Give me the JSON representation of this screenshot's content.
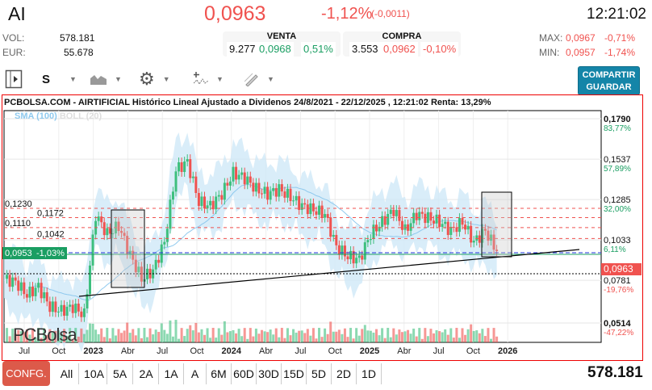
{
  "header": {
    "ticker": "AI",
    "price": "0,0963",
    "change_pct": "-1,12%",
    "change_abs": "(-0,0011)",
    "time": "12:21:02",
    "vol_label": "VOL:",
    "vol": "578.181",
    "eur_label": "EUR:",
    "eur": "55.678",
    "venta": {
      "label": "VENTA",
      "qty": "9.277",
      "price": "0,0968",
      "pct": "0,51%"
    },
    "compra": {
      "label": "COMPRA",
      "qty": "3.553",
      "price": "0,0962",
      "pct": "-0,10%"
    },
    "max_label": "MAX:",
    "max": "0,0967",
    "max_pct": "-0,71%",
    "min_label": "MIN:",
    "min": "0,0957",
    "min_pct": "-1,74%"
  },
  "toolbar": {
    "chart_style": "S",
    "share_line1": "COMPARTIR",
    "share_line2": "GUARDAR",
    "icons": [
      "panel-toggle-icon",
      "area-chart-icon",
      "gear-icon",
      "indicators-icon",
      "pencil-draw-icon"
    ]
  },
  "chart": {
    "title": "PCBOLSA.COM - AIRTIFICIAL Histórico Lineal Ajustado a Dividenos 24/8/2021 - 22/12/2025 , 12:21:02 Renta: 13,29%",
    "legend_sma": "SMA (100)",
    "legend_boll": "BOLL (20)",
    "logo_text": "PCBolsa",
    "colors": {
      "up": "#3dbf7d",
      "down": "#f0524f",
      "band": "#cfe8f8",
      "sma": "#8fc9ee"
    }
  },
  "chart_data": {
    "type": "candlestick",
    "x": [
      "2022-05",
      "2022-06",
      "2022-07",
      "2022-08",
      "2022-09",
      "2022-10",
      "2022-11",
      "2022-12",
      "2023-01",
      "2023-02",
      "2023-03",
      "2023-04",
      "2023-05",
      "2023-06",
      "2023-07",
      "2023-08",
      "2023-09",
      "2023-10",
      "2023-11",
      "2023-12",
      "2024-01",
      "2024-02",
      "2024-03",
      "2024-04",
      "2024-05",
      "2024-06",
      "2024-07",
      "2024-08",
      "2024-09",
      "2024-10",
      "2024-11",
      "2024-12",
      "2025-01",
      "2025-02",
      "2025-03",
      "2025-04",
      "2025-05",
      "2025-06",
      "2025-07",
      "2025-08",
      "2025-09",
      "2025-10",
      "2025-11",
      "2025-12"
    ],
    "close": [
      0.079,
      0.077,
      0.069,
      0.074,
      0.0615,
      0.059,
      0.0615,
      0.0565,
      0.119,
      0.107,
      0.112,
      0.094,
      0.079,
      0.084,
      0.102,
      0.147,
      0.152,
      0.127,
      0.1245,
      0.132,
      0.145,
      0.142,
      0.135,
      0.132,
      0.135,
      0.13,
      0.1245,
      0.122,
      0.1195,
      0.099,
      0.093,
      0.091,
      0.107,
      0.1145,
      0.122,
      0.109,
      0.1195,
      0.117,
      0.1145,
      0.109,
      0.1145,
      0.102,
      0.109,
      0.0963
    ],
    "x_ticks": [
      "Jul",
      "Oct",
      "2023",
      "Abr",
      "Jul",
      "Oct",
      "2024",
      "Abr",
      "Jul",
      "Oct",
      "2025",
      "Abr",
      "Jul",
      "Oct",
      "2026"
    ],
    "y_ticks": [
      {
        "v": "0,1790",
        "p": "83,77%"
      },
      {
        "v": "0,1537",
        "p": "57,89%"
      },
      {
        "v": "0,1285",
        "p": "32,00%"
      },
      {
        "v": "0,1033",
        "p": "6,11%"
      },
      {
        "v": "0,0781",
        "p": "-19,76%"
      },
      {
        "v": "0,0514",
        "p": "-47,22%"
      }
    ],
    "ylim": [
      0.0514,
      0.179
    ],
    "last_price_label": "0,0963",
    "levels": [
      {
        "label": "0,1230",
        "v": 0.123
      },
      {
        "label": "0,1172",
        "v": 0.1172
      },
      {
        "label": "0,1110",
        "v": 0.111
      },
      {
        "label": "0,1042",
        "v": 0.1042
      }
    ],
    "marker": {
      "label": "0,0953",
      "pct": "-1,03%",
      "v": 0.0953
    }
  },
  "footer": {
    "config": "CONFG.",
    "ranges": [
      "All",
      "10A",
      "5A",
      "2A",
      "1A",
      "A",
      "6M",
      "60D",
      "30D",
      "15D",
      "5D",
      "2D",
      "1D"
    ],
    "volume": "578.181"
  }
}
